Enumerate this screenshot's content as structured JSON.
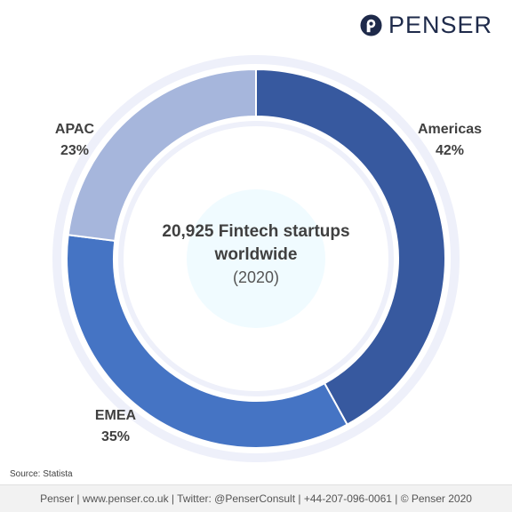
{
  "logo": {
    "name": "PENSER"
  },
  "chart_data": {
    "type": "pie",
    "variant": "donut",
    "categories": [
      "Americas",
      "EMEA",
      "APAC"
    ],
    "values": [
      42,
      35,
      23
    ],
    "value_labels": [
      "42%",
      "35%",
      "23%"
    ],
    "colors": [
      "#37599f",
      "#4574c4",
      "#a6b6dc"
    ],
    "center_title": "20,925 Fintech startups worldwide",
    "center_subtitle": "(2020)",
    "legend": "none"
  },
  "source": "Source: Statista",
  "footer": "Penser  |  www.penser.co.uk  |  Twitter: @PenserConsult  |  +44-207-096-0061  |  © Penser 2020"
}
